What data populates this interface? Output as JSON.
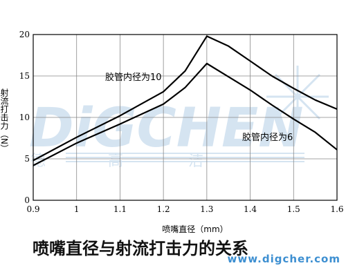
{
  "watermark": {
    "brand": "DiGCHEN",
    "cn": [
      "德",
      "高",
      "洁"
    ],
    "url": "www.digcher.com"
  },
  "caption": "喷嘴直径与射流打击力的关系",
  "chart_data": {
    "type": "line",
    "title": "",
    "xlabel": "喷嘴直径（mm）",
    "ylabel": "射流打击力（N）",
    "xlim": [
      0.9,
      1.6
    ],
    "ylim": [
      0,
      20
    ],
    "x_ticks": [
      "0.9",
      "1",
      "1.1",
      "1.2",
      "1.3",
      "1.4",
      "1.5",
      "1.6"
    ],
    "y_ticks": [
      "0",
      "5",
      "10",
      "15",
      "20"
    ],
    "grid": true,
    "series": [
      {
        "name": "胶管内径为10",
        "x": [
          0.9,
          1.0,
          1.1,
          1.2,
          1.25,
          1.3,
          1.35,
          1.4,
          1.45,
          1.5,
          1.55,
          1.6
        ],
        "y": [
          4.8,
          7.6,
          10.2,
          13.1,
          15.6,
          19.8,
          18.6,
          16.8,
          15.0,
          13.5,
          12.1,
          11.0
        ]
      },
      {
        "name": "胶管内径为6",
        "x": [
          0.9,
          1.0,
          1.1,
          1.2,
          1.25,
          1.3,
          1.35,
          1.4,
          1.45,
          1.5,
          1.55,
          1.6
        ],
        "y": [
          4.2,
          6.9,
          9.2,
          11.6,
          13.6,
          16.5,
          14.9,
          13.3,
          11.5,
          9.8,
          8.2,
          6.1
        ]
      }
    ],
    "annotations": [
      "胶管内径为10",
      "胶管内径为6"
    ]
  }
}
